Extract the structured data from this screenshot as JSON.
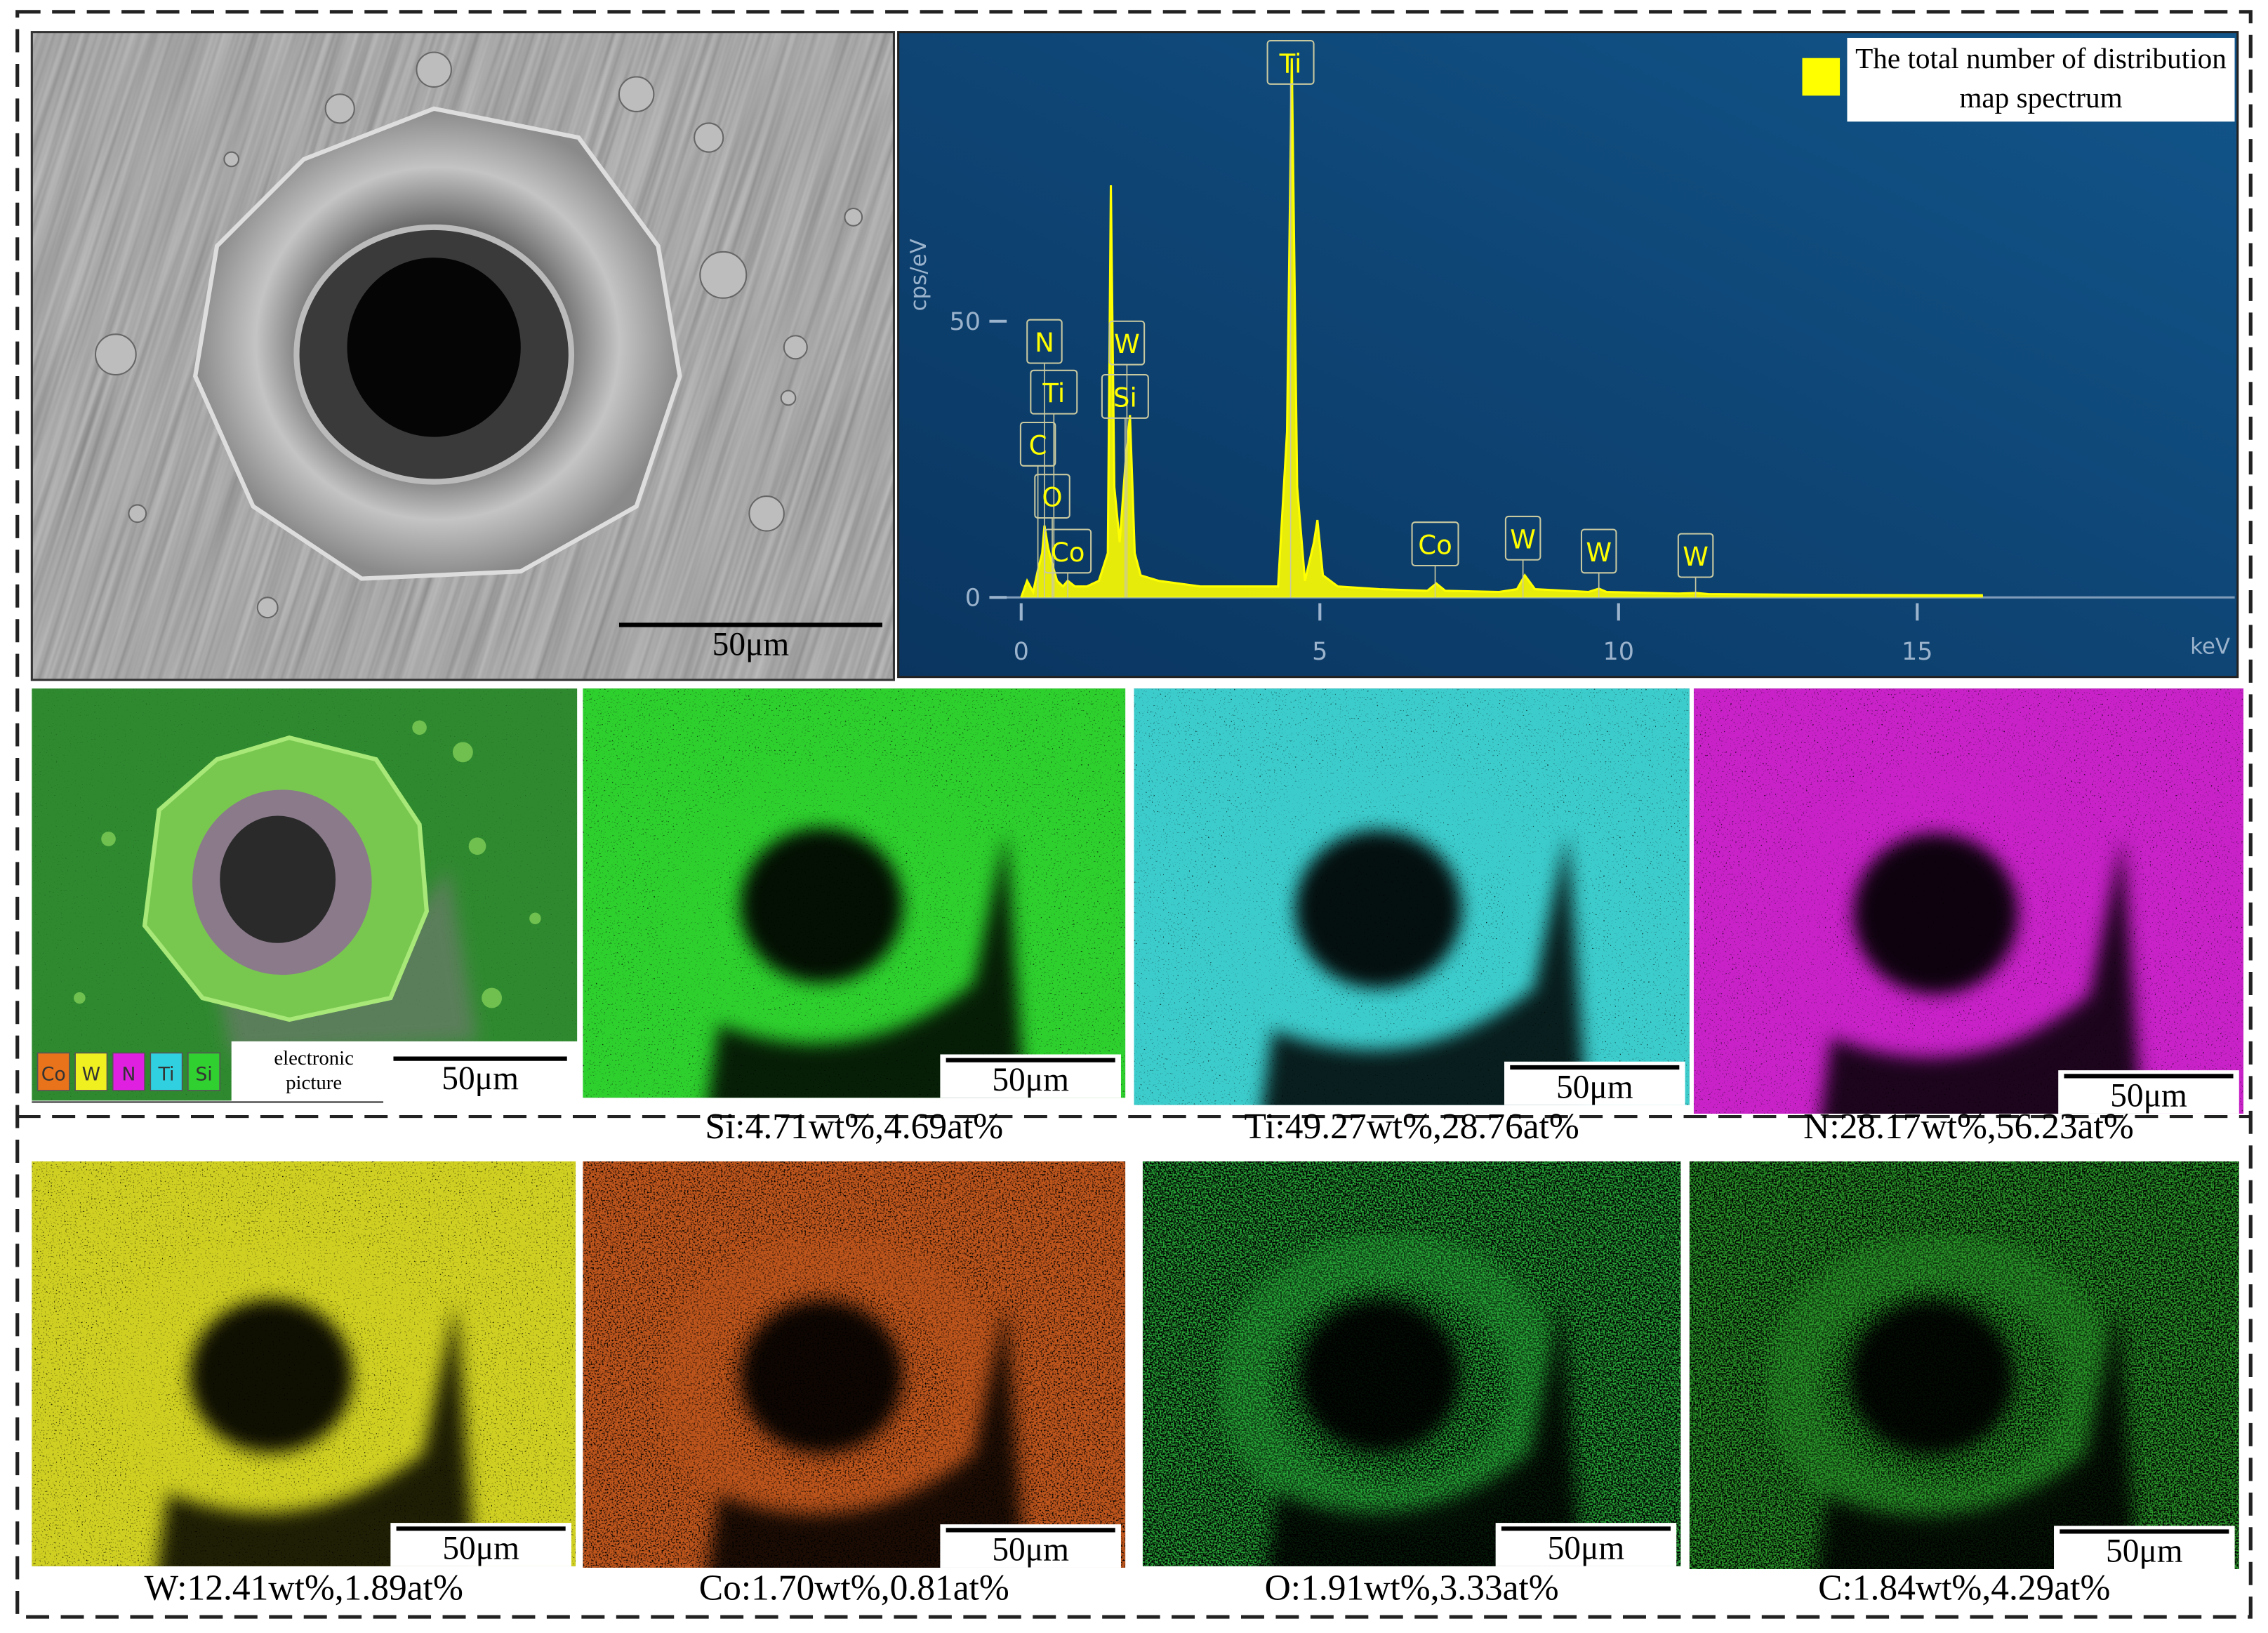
{
  "sem_image": {
    "scale_bar": "50μm"
  },
  "chart_data": {
    "type": "line",
    "xlabel": "keV",
    "ylabel": "cps/eV",
    "xlim": [
      0,
      20
    ],
    "xticks": [
      0,
      5,
      10,
      15
    ],
    "ylim": [
      0,
      100
    ],
    "yticks": [
      0,
      50
    ],
    "x": [
      0,
      0.1,
      0.2,
      0.28,
      0.35,
      0.39,
      0.45,
      0.52,
      0.6,
      0.7,
      0.78,
      0.9,
      1.1,
      1.3,
      1.45,
      1.5,
      1.56,
      1.65,
      1.75,
      1.82,
      1.9,
      2.0,
      2.3,
      3.0,
      4.0,
      4.3,
      4.45,
      4.53,
      4.62,
      4.75,
      4.9,
      4.96,
      5.05,
      5.3,
      6.0,
      6.8,
      6.95,
      7.1,
      8.0,
      8.3,
      8.43,
      8.6,
      9.5,
      9.67,
      9.8,
      11.0,
      11.3,
      11.5,
      13,
      16.1
    ],
    "series": [
      {
        "name": "The total number of distribution map spectrum",
        "color": "#ffff00",
        "values": [
          0,
          3,
          1,
          5,
          8,
          13,
          9,
          6,
          3,
          2,
          3,
          2,
          2,
          3,
          8,
          74.6,
          20,
          10,
          25,
          33,
          8,
          4,
          3,
          2,
          2,
          2,
          30,
          97.6,
          20,
          3,
          10,
          14,
          4,
          2,
          1.5,
          1.2,
          2.5,
          1.2,
          1,
          1.5,
          4,
          1.5,
          1,
          1.6,
          1,
          0.7,
          0.8,
          0.6,
          0.5,
          0.4
        ]
      }
    ],
    "legend": "upper right",
    "annotations": [
      {
        "text": "Ti",
        "x": 4.51
      },
      {
        "text": "N",
        "x": 0.39
      },
      {
        "text": "Ti",
        "x": 0.45
      },
      {
        "text": "C",
        "x": 0.28
      },
      {
        "text": "O",
        "x": 0.52
      },
      {
        "text": "Co",
        "x": 0.78
      },
      {
        "text": "W",
        "x": 1.77
      },
      {
        "text": "Si",
        "x": 1.74
      },
      {
        "text": "Co",
        "x": 6.93
      },
      {
        "text": "W",
        "x": 8.4
      },
      {
        "text": "W",
        "x": 9.67
      },
      {
        "text": "W",
        "x": 11.29
      }
    ]
  },
  "electron_image": {
    "legend": [
      {
        "label": "Co",
        "color": "#e8731a"
      },
      {
        "label": "W",
        "color": "#f0f020"
      },
      {
        "label": "N",
        "color": "#e020e0"
      },
      {
        "label": "Ti",
        "color": "#30d0e0"
      },
      {
        "label": "Si",
        "color": "#30d030"
      }
    ],
    "label": "electronic picture",
    "scale_bar": "50μm"
  },
  "maps": [
    {
      "caption": "Si:4.71wt%,4.69at%",
      "color": "#2fd02f",
      "scale_bar": "50μm"
    },
    {
      "caption": "Ti:49.27wt%,28.76at%",
      "color": "#3ccccc",
      "scale_bar": "50μm"
    },
    {
      "caption": "N:28.17wt%,56.23at%",
      "color": "#c822c8",
      "scale_bar": "50μm"
    },
    {
      "caption": "W:12.41wt%,1.89at%",
      "color": "#d0d022",
      "scale_bar": "50μm"
    },
    {
      "caption": "Co:1.70wt%,0.81at%",
      "color": "#c0561e",
      "scale_bar": "50μm"
    },
    {
      "caption": "O:1.91wt%,3.33at%",
      "color": "#28a838",
      "scale_bar": "50μm"
    },
    {
      "caption": "C:1.84wt%,4.29at%",
      "color": "#2a9a2a",
      "scale_bar": "50μm"
    }
  ]
}
